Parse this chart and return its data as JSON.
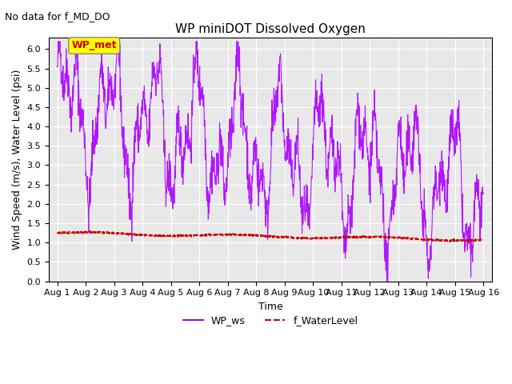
{
  "title": "WP miniDOT Dissolved Oxygen",
  "subtitle": "No data for f_MD_DO",
  "ylabel": "Wind Speed (m/s), Water Level (psi)",
  "xlabel": "Time",
  "ylim": [
    0.0,
    6.3
  ],
  "yticks": [
    0.0,
    0.5,
    1.0,
    1.5,
    2.0,
    2.5,
    3.0,
    3.5,
    4.0,
    4.5,
    5.0,
    5.5,
    6.0
  ],
  "xtick_labels": [
    "Aug 1",
    "Aug 2",
    "Aug 3",
    "Aug 4",
    "Aug 5",
    "Aug 6",
    "Aug 7",
    "Aug 8",
    "Aug 9",
    "Aug 10",
    "Aug 11",
    "Aug 12",
    "Aug 13",
    "Aug 14",
    "Aug 15",
    "Aug 16"
  ],
  "line_wp_ws_color": "#aa00ff",
  "line_water_level_color": "#cc0000",
  "bg_color": "#e8e8e8",
  "annotation_box_color": "#ffff00",
  "annotation_text": "WP_met",
  "annotation_text_color": "#cc0000"
}
